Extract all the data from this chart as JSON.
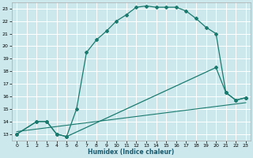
{
  "title": "",
  "xlabel": "Humidex (Indice chaleur)",
  "bg_color": "#cce8ec",
  "grid_color": "#ffffff",
  "line_color": "#1a7a6e",
  "xlim": [
    -0.5,
    23.5
  ],
  "ylim": [
    12.5,
    23.5
  ],
  "xticks": [
    0,
    1,
    2,
    3,
    4,
    5,
    6,
    7,
    8,
    9,
    10,
    11,
    12,
    13,
    14,
    15,
    16,
    17,
    18,
    19,
    20,
    21,
    22,
    23
  ],
  "yticks": [
    13,
    14,
    15,
    16,
    17,
    18,
    19,
    20,
    21,
    22,
    23
  ],
  "curve1_x": [
    0,
    2,
    3,
    4,
    5,
    6,
    7,
    8,
    9,
    10,
    11,
    12,
    13,
    14,
    15,
    16,
    17,
    18,
    19,
    20,
    21,
    22,
    23
  ],
  "curve1_y": [
    13,
    14,
    14,
    13,
    12.8,
    15,
    19.5,
    20.5,
    21.2,
    22.0,
    22.5,
    23.1,
    23.2,
    23.1,
    23.1,
    23.1,
    22.8,
    22.2,
    21.5,
    21.0,
    16.3,
    15.7,
    15.9
  ],
  "curve2_x": [
    0,
    2,
    3,
    4,
    5,
    20,
    21,
    22,
    23
  ],
  "curve2_y": [
    13,
    14,
    14,
    13,
    12.8,
    18.3,
    16.3,
    15.7,
    15.9
  ],
  "curve3_x": [
    0,
    23
  ],
  "curve3_y": [
    13.2,
    15.5
  ]
}
